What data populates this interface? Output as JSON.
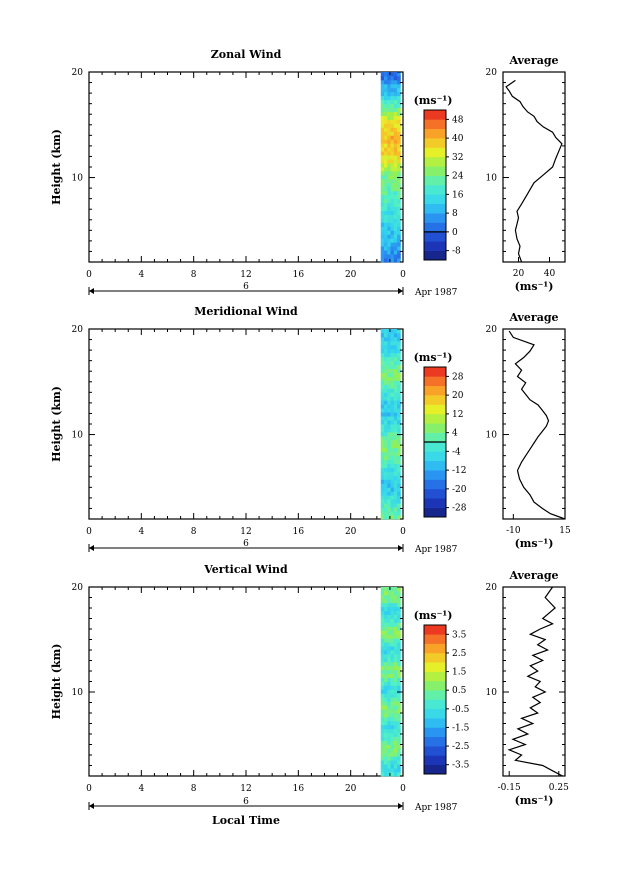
{
  "chart_data": [
    {
      "type": "heatmap",
      "title": "Zonal Wind",
      "ylabel": "Height (km)",
      "ylim": [
        2,
        20
      ],
      "xlim": [
        0,
        24
      ],
      "x_ticks": [
        "0",
        "4",
        "8",
        "12",
        "16",
        "20",
        "0"
      ],
      "y_ticks": [
        "10",
        "20"
      ],
      "date_marker": "6",
      "date_label": "Apr 1987",
      "data_time_range": [
        22.3,
        23.8
      ],
      "colorbar": {
        "unit": "(ms⁻¹)",
        "ticks": [
          "48",
          "40",
          "32",
          "24",
          "16",
          "8",
          "0",
          "-8"
        ],
        "range": [
          -12,
          52
        ],
        "zero_line": 0
      },
      "columns": [
        {
          "y": [
            2,
            4,
            6,
            8,
            10,
            11,
            12,
            13,
            14,
            15,
            16,
            17,
            18,
            19,
            19.5
          ],
          "v": [
            4,
            10,
            14,
            20,
            24,
            30,
            36,
            38,
            40,
            36,
            28,
            20,
            12,
            6,
            2
          ]
        }
      ],
      "profile": {
        "title": "Average",
        "xlabel": "(ms⁻¹)",
        "x_ticks": [
          "20",
          "40"
        ],
        "y_ticks": [
          "10",
          "20"
        ],
        "xlim": [
          10,
          50
        ],
        "ylim": [
          2,
          20
        ],
        "x": [
          22,
          20,
          21,
          19,
          18,
          19,
          20,
          19,
          22,
          24,
          26,
          28,
          30,
          34,
          38,
          42,
          44,
          46,
          48,
          44,
          42,
          36,
          32,
          30,
          26,
          23,
          21,
          16,
          14,
          12,
          18
        ],
        "y": [
          2,
          2.8,
          3.5,
          4.2,
          5,
          5.6,
          6.2,
          6.8,
          7.5,
          8,
          8.5,
          9,
          9.5,
          10,
          10.5,
          11,
          11.8,
          12.5,
          13.2,
          13.8,
          14.3,
          14.8,
          15.3,
          15.8,
          16.2,
          16.7,
          17.2,
          17.7,
          18.2,
          18.6,
          19.2
        ]
      }
    },
    {
      "type": "heatmap",
      "title": "Meridional Wind",
      "ylabel": "Height (km)",
      "ylim": [
        2,
        20
      ],
      "xlim": [
        0,
        24
      ],
      "x_ticks": [
        "0",
        "4",
        "8",
        "12",
        "16",
        "20",
        "0"
      ],
      "y_ticks": [
        "10",
        "20"
      ],
      "date_marker": "6",
      "date_label": "Apr 1987",
      "data_time_range": [
        22.3,
        23.8
      ],
      "colorbar": {
        "unit": "(ms⁻¹)",
        "ticks": [
          "28",
          "20",
          "12",
          "4",
          "-4",
          "-12",
          "-20",
          "-28"
        ],
        "range": [
          -32,
          32
        ],
        "zero_line": 0
      },
      "profile": {
        "title": "Average",
        "xlabel": "(ms⁻¹)",
        "x_ticks": [
          "-10",
          "15"
        ],
        "y_ticks": [
          "10",
          "20"
        ],
        "xlim": [
          -15,
          15
        ],
        "ylim": [
          2,
          20
        ],
        "x": [
          15,
          8,
          4,
          0,
          -2,
          -5,
          -7,
          -8,
          -6,
          -4,
          -2,
          0,
          2,
          4,
          6,
          7,
          6,
          4,
          2,
          -2,
          -4,
          -6,
          -4,
          -8,
          -6,
          -9,
          -5,
          -2,
          0,
          -10,
          -12
        ],
        "y": [
          2,
          2.5,
          3,
          3.6,
          4.3,
          5,
          5.8,
          6.6,
          7.4,
          8,
          8.6,
          9.2,
          9.8,
          10.3,
          10.8,
          11.3,
          11.8,
          12.3,
          12.8,
          13.3,
          13.8,
          14.3,
          14.9,
          15.5,
          16.1,
          16.7,
          17.3,
          17.9,
          18.5,
          19.2,
          19.8
        ]
      }
    },
    {
      "type": "heatmap",
      "title": "Vertical Wind",
      "xlabel": "Local Time",
      "ylabel": "Height (km)",
      "ylim": [
        2,
        20
      ],
      "xlim": [
        0,
        24
      ],
      "x_ticks": [
        "0",
        "4",
        "8",
        "12",
        "16",
        "20",
        "0"
      ],
      "y_ticks": [
        "10",
        "20"
      ],
      "date_marker": "6",
      "date_label": "Apr 1987",
      "data_time_range": [
        22.3,
        23.8
      ],
      "colorbar": {
        "unit": "(ms⁻¹)",
        "ticks": [
          "3.5",
          "2.5",
          "1.5",
          "0.5",
          "-0.5",
          "-1.5",
          "-2.5",
          "-3.5"
        ],
        "range": [
          -4,
          4
        ],
        "zero_line": null
      },
      "profile": {
        "title": "Average",
        "xlabel": "(ms⁻¹)",
        "x_ticks": [
          "-0.15",
          "0.25"
        ],
        "y_ticks": [
          "10",
          "20"
        ],
        "xlim": [
          -0.2,
          0.3
        ],
        "ylim": [
          2,
          20
        ],
        "x": [
          0.28,
          0.2,
          0.12,
          -0.1,
          -0.05,
          -0.15,
          -0.02,
          -0.12,
          0.0,
          -0.08,
          0.04,
          -0.05,
          0.08,
          0.02,
          0.1,
          0.04,
          0.14,
          0.06,
          0.1,
          0.0,
          0.08,
          0.02,
          0.12,
          0.04,
          0.16,
          0.08,
          0.14,
          0.02,
          0.1,
          0.2,
          0.12,
          0.22,
          0.14,
          0.2
        ],
        "y": [
          2,
          2.5,
          3,
          3.5,
          4,
          4.5,
          5,
          5.5,
          6,
          6.5,
          7,
          7.5,
          8,
          8.5,
          9,
          9.5,
          10,
          10.5,
          11,
          11.5,
          12,
          12.5,
          13,
          13.5,
          14,
          14.5,
          15,
          15.5,
          16,
          16.5,
          17,
          18,
          19,
          20
        ]
      }
    }
  ]
}
